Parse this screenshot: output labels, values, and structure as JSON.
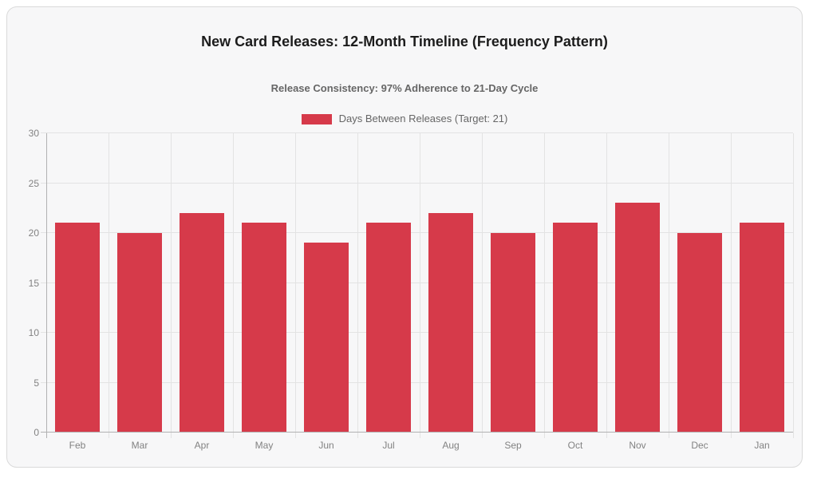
{
  "chart_data": {
    "type": "bar",
    "title": "New Card Releases: 12-Month Timeline (Frequency Pattern)",
    "subtitle": "Release Consistency: 97% Adherence to 21-Day Cycle",
    "legend": [
      {
        "label": "Days Between Releases (Target: 21)",
        "color": "#d63a4a"
      }
    ],
    "legend_position": "top-center",
    "categories": [
      "Feb",
      "Mar",
      "Apr",
      "May",
      "Jun",
      "Jul",
      "Aug",
      "Sep",
      "Oct",
      "Nov",
      "Dec",
      "Jan"
    ],
    "values": [
      21,
      20,
      22,
      21,
      19,
      21,
      22,
      20,
      21,
      23,
      20,
      21
    ],
    "xlabel": "",
    "ylabel": "",
    "ylim": [
      0,
      30
    ],
    "yticks": [
      0,
      5,
      10,
      15,
      20,
      25,
      30
    ],
    "grid": "on",
    "bar_color": "#d63a4a"
  },
  "colors": {
    "card_background": "#f7f7f8",
    "card_border": "#dadada",
    "gridline": "#e3e3e3",
    "axis_line": "#b2b2b2",
    "tick_text": "#828282",
    "title_text": "#1c1c1c",
    "subtitle_text": "#666666"
  }
}
